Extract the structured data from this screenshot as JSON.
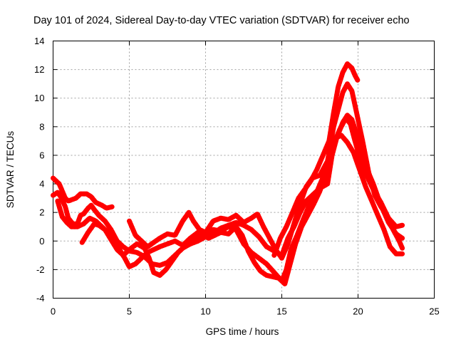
{
  "chart_data": {
    "type": "scatter",
    "title": "Day 101 of 2024, Sidereal Day-to-day VTEC variation (SDTVAR) for receiver echo",
    "xlabel": "GPS time / hours",
    "ylabel": "SDTVAR / TECUs",
    "xlim": [
      0,
      25
    ],
    "ylim": [
      -4,
      14
    ],
    "xticks": [
      0,
      5,
      10,
      15,
      20,
      25
    ],
    "yticks": [
      -4,
      -2,
      0,
      2,
      4,
      6,
      8,
      10,
      12,
      14
    ],
    "grid": true,
    "marker": "+",
    "color": "#ff0000",
    "series": [
      {
        "name": "trace-1",
        "points": [
          [
            0,
            4.4
          ],
          [
            0.4,
            4.0
          ],
          [
            0.8,
            3.0
          ],
          [
            1.0,
            2.8
          ],
          [
            1.5,
            3.0
          ],
          [
            1.8,
            3.3
          ],
          [
            2.2,
            3.3
          ],
          [
            2.5,
            3.1
          ],
          [
            2.8,
            2.7
          ],
          [
            3.2,
            2.5
          ],
          [
            3.5,
            2.3
          ],
          [
            3.9,
            2.4
          ]
        ]
      },
      {
        "name": "trace-2",
        "points": [
          [
            0,
            3.2
          ],
          [
            0.3,
            3.4
          ],
          [
            0.5,
            3.1
          ],
          [
            0.8,
            2.4
          ],
          [
            1.0,
            1.6
          ],
          [
            1.3,
            1.2
          ],
          [
            1.6,
            1.2
          ],
          [
            1.8,
            1.8
          ],
          [
            2.0,
            1.9
          ],
          [
            2.3,
            2.3
          ],
          [
            2.5,
            2.5
          ],
          [
            2.7,
            2.2
          ],
          [
            3.0,
            1.8
          ],
          [
            3.4,
            1.4
          ],
          [
            3.8,
            0.8
          ],
          [
            4.2,
            0.0
          ],
          [
            4.6,
            -0.4
          ],
          [
            5.0,
            -0.7
          ],
          [
            5.5,
            -0.8
          ],
          [
            6.0,
            -1.1
          ],
          [
            6.5,
            -1.6
          ],
          [
            7.0,
            -1.7
          ],
          [
            7.5,
            -1.5
          ],
          [
            8.0,
            -1.0
          ],
          [
            8.5,
            -0.5
          ],
          [
            9.0,
            -0.2
          ],
          [
            9.5,
            0.0
          ],
          [
            10.0,
            0.3
          ],
          [
            10.5,
            0.5
          ],
          [
            11.0,
            0.9
          ],
          [
            11.5,
            1.1
          ],
          [
            12.0,
            1.3
          ],
          [
            12.5,
            1.1
          ],
          [
            13.0,
            0.8
          ],
          [
            13.5,
            0.3
          ],
          [
            14.0,
            -0.4
          ],
          [
            14.5,
            -0.7
          ],
          [
            15.0,
            -1.0
          ],
          [
            15.4,
            0.2
          ],
          [
            15.8,
            1.0
          ],
          [
            16.2,
            2.0
          ],
          [
            16.6,
            2.8
          ],
          [
            17.0,
            3.2
          ],
          [
            17.5,
            3.7
          ],
          [
            18.0,
            4.0
          ],
          [
            18.3,
            6.0
          ],
          [
            18.6,
            7.2
          ],
          [
            19.0,
            8.3
          ],
          [
            19.3,
            8.8
          ],
          [
            19.6,
            8.5
          ],
          [
            20.0,
            7.2
          ],
          [
            20.3,
            6.0
          ],
          [
            20.6,
            5.0
          ],
          [
            21.0,
            4.0
          ],
          [
            21.5,
            2.5
          ],
          [
            22.0,
            1.3
          ],
          [
            22.5,
            0.5
          ],
          [
            22.9,
            0.2
          ]
        ]
      },
      {
        "name": "trace-3",
        "points": [
          [
            0.3,
            2.8
          ],
          [
            0.6,
            1.7
          ],
          [
            0.9,
            1.3
          ],
          [
            1.2,
            1.0
          ],
          [
            1.6,
            1.0
          ],
          [
            2.0,
            1.2
          ],
          [
            2.4,
            1.6
          ],
          [
            2.8,
            1.4
          ],
          [
            3.2,
            1.0
          ],
          [
            3.6,
            0.6
          ],
          [
            4.0,
            0.2
          ],
          [
            4.3,
            -0.5
          ],
          [
            4.7,
            -1.2
          ],
          [
            5.0,
            -1.8
          ],
          [
            5.4,
            -1.6
          ],
          [
            5.8,
            -1.2
          ],
          [
            6.2,
            -0.8
          ],
          [
            6.6,
            -0.6
          ],
          [
            7.0,
            -0.4
          ],
          [
            7.5,
            -0.2
          ],
          [
            8.0,
            0.0
          ],
          [
            8.5,
            -0.3
          ],
          [
            9.0,
            0.2
          ],
          [
            9.5,
            0.6
          ],
          [
            10.0,
            0.6
          ],
          [
            10.5,
            0.8
          ],
          [
            11.0,
            0.7
          ],
          [
            11.5,
            1.0
          ],
          [
            12.0,
            0.8
          ],
          [
            12.5,
            -0.2
          ],
          [
            13.0,
            -0.8
          ],
          [
            13.5,
            -1.2
          ],
          [
            14.0,
            -1.6
          ],
          [
            14.5,
            -2.2
          ],
          [
            15.0,
            -2.8
          ],
          [
            15.3,
            -2.0
          ],
          [
            15.6,
            -0.6
          ],
          [
            16.0,
            0.4
          ],
          [
            16.4,
            1.5
          ],
          [
            16.8,
            2.5
          ],
          [
            17.2,
            3.2
          ],
          [
            17.6,
            4.2
          ],
          [
            18.0,
            5.2
          ],
          [
            18.4,
            6.8
          ],
          [
            18.8,
            7.8
          ],
          [
            19.2,
            8.6
          ],
          [
            19.5,
            8.2
          ],
          [
            19.8,
            7.0
          ],
          [
            20.2,
            5.5
          ],
          [
            20.6,
            4.5
          ],
          [
            21.0,
            3.6
          ],
          [
            21.5,
            2.7
          ],
          [
            22.0,
            1.6
          ],
          [
            22.5,
            1.0
          ],
          [
            22.9,
            1.1
          ]
        ]
      },
      {
        "name": "trace-4",
        "points": [
          [
            1.9,
            -0.1
          ],
          [
            2.3,
            0.6
          ],
          [
            2.7,
            1.2
          ],
          [
            3.0,
            1.1
          ],
          [
            3.4,
            0.8
          ],
          [
            3.8,
            0.1
          ],
          [
            4.2,
            -0.6
          ],
          [
            4.6,
            -1.0
          ],
          [
            5.0,
            -0.6
          ],
          [
            5.5,
            -0.2
          ],
          [
            6.0,
            -0.5
          ],
          [
            6.3,
            -1.2
          ],
          [
            6.6,
            -2.2
          ],
          [
            7.0,
            -2.4
          ],
          [
            7.4,
            -2.0
          ],
          [
            7.8,
            -1.4
          ],
          [
            8.2,
            -0.8
          ],
          [
            8.6,
            -0.4
          ],
          [
            9.0,
            -0.2
          ],
          [
            9.4,
            0.3
          ],
          [
            9.8,
            0.4
          ],
          [
            10.2,
            0.2
          ],
          [
            10.6,
            0.4
          ],
          [
            11.0,
            0.6
          ],
          [
            11.5,
            0.5
          ],
          [
            12.0,
            1.0
          ],
          [
            12.4,
            0.4
          ],
          [
            12.8,
            -0.7
          ],
          [
            13.2,
            -1.5
          ],
          [
            13.6,
            -2.1
          ],
          [
            14.0,
            -2.4
          ],
          [
            14.4,
            -2.5
          ],
          [
            14.8,
            -2.6
          ],
          [
            15.2,
            -3.0
          ],
          [
            15.5,
            -1.8
          ],
          [
            15.9,
            -0.2
          ],
          [
            16.3,
            1.0
          ],
          [
            16.7,
            1.8
          ],
          [
            17.1,
            2.6
          ],
          [
            17.5,
            3.5
          ],
          [
            17.9,
            4.8
          ],
          [
            18.2,
            6.4
          ],
          [
            18.5,
            7.2
          ],
          [
            18.9,
            7.4
          ],
          [
            19.3,
            6.9
          ],
          [
            19.7,
            6.2
          ],
          [
            20.1,
            5.0
          ],
          [
            20.5,
            3.8
          ],
          [
            20.9,
            2.8
          ],
          [
            21.3,
            1.8
          ],
          [
            21.7,
            0.8
          ],
          [
            22.1,
            -0.4
          ],
          [
            22.5,
            -0.9
          ],
          [
            22.9,
            -0.9
          ]
        ]
      },
      {
        "name": "trace-5",
        "points": [
          [
            5.0,
            1.4
          ],
          [
            5.4,
            0.4
          ],
          [
            5.8,
            0.0
          ],
          [
            6.2,
            -0.4
          ],
          [
            6.6,
            -0.1
          ],
          [
            7.0,
            0.2
          ],
          [
            7.5,
            0.5
          ],
          [
            8.0,
            0.4
          ],
          [
            8.5,
            1.4
          ],
          [
            8.9,
            2.0
          ],
          [
            9.2,
            1.4
          ],
          [
            9.6,
            0.8
          ],
          [
            10.0,
            0.6
          ],
          [
            10.5,
            1.4
          ],
          [
            11.0,
            1.6
          ],
          [
            11.5,
            1.5
          ],
          [
            12.0,
            1.8
          ],
          [
            12.5,
            1.3
          ],
          [
            13.0,
            1.6
          ],
          [
            13.4,
            1.9
          ],
          [
            13.8,
            1.0
          ],
          [
            14.2,
            0.2
          ],
          [
            14.6,
            -0.6
          ],
          [
            15.0,
            -1.2
          ],
          [
            15.4,
            -0.2
          ],
          [
            15.8,
            1.2
          ],
          [
            16.2,
            2.6
          ],
          [
            16.6,
            3.8
          ],
          [
            17.0,
            4.4
          ],
          [
            17.5,
            4.6
          ],
          [
            18.0,
            5.6
          ],
          [
            18.4,
            8.0
          ],
          [
            18.7,
            9.2
          ],
          [
            19.0,
            10.4
          ],
          [
            19.3,
            11.0
          ],
          [
            19.6,
            10.5
          ],
          [
            19.9,
            9.0
          ],
          [
            20.3,
            7.0
          ],
          [
            20.7,
            4.8
          ],
          [
            21.1,
            3.2
          ],
          [
            21.5,
            2.4
          ],
          [
            21.9,
            1.8
          ],
          [
            22.3,
            0.8
          ],
          [
            22.7,
            0.0
          ],
          [
            22.9,
            -0.5
          ]
        ]
      },
      {
        "name": "trace-6",
        "points": [
          [
            14.5,
            -1.0
          ],
          [
            14.9,
            0.2
          ],
          [
            15.3,
            1.0
          ],
          [
            15.7,
            2.0
          ],
          [
            16.1,
            3.0
          ],
          [
            16.5,
            3.6
          ],
          [
            16.9,
            4.2
          ],
          [
            17.3,
            5.0
          ],
          [
            17.7,
            6.0
          ],
          [
            18.1,
            7.0
          ],
          [
            18.4,
            9.0
          ],
          [
            18.7,
            10.8
          ],
          [
            19.0,
            11.8
          ],
          [
            19.3,
            12.4
          ],
          [
            19.6,
            12.1
          ],
          [
            19.8,
            11.6
          ],
          [
            20.0,
            11.2
          ]
        ]
      }
    ]
  }
}
